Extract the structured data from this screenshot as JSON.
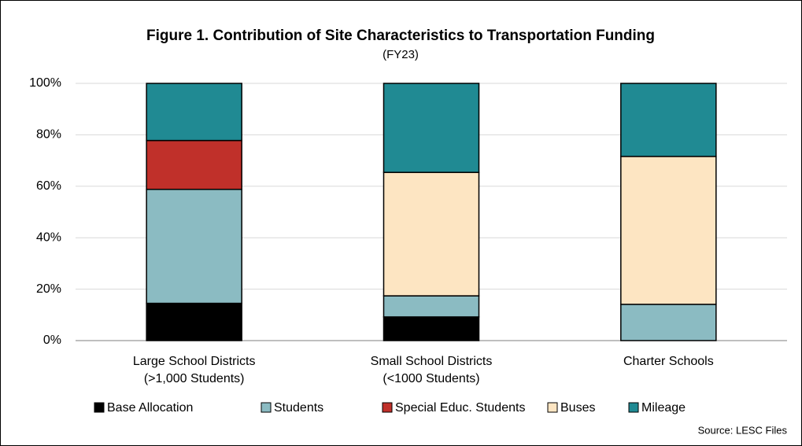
{
  "chart_data": {
    "type": "stacked_bar",
    "title": "Figure 1. Contribution of Site Characteristics to Transportation Funding",
    "subtitle": "(FY23)",
    "source": "Source: LESC Files",
    "categories": [
      "Large School Districts\n(>1,000 Students)",
      "Small School Districts\n(<1000 Students)",
      "Charter Schools"
    ],
    "series": [
      {
        "name": "Base Allocation",
        "color": "#000000",
        "values": [
          14.5,
          9.2,
          0
        ]
      },
      {
        "name": "Students",
        "color": "#8bbbc2",
        "values": [
          44.3,
          8.2,
          14.1
        ]
      },
      {
        "name": "Special Educ. Students",
        "color": "#c0302a",
        "values": [
          19.0,
          0,
          0
        ]
      },
      {
        "name": "Buses",
        "color": "#fde5c2",
        "values": [
          0,
          48.0,
          57.5
        ]
      },
      {
        "name": "Mileage",
        "color": "#208a93",
        "values": [
          22.2,
          34.6,
          28.4
        ]
      }
    ],
    "ylim": [
      0,
      100
    ],
    "yticks": [
      {
        "value": 0,
        "label": "0%"
      },
      {
        "value": 20,
        "label": "20%"
      },
      {
        "value": 40,
        "label": "40%"
      },
      {
        "value": 60,
        "label": "60%"
      },
      {
        "value": 80,
        "label": "80%"
      },
      {
        "value": 100,
        "label": "100%"
      }
    ],
    "grid": true,
    "legend": "bottom"
  }
}
